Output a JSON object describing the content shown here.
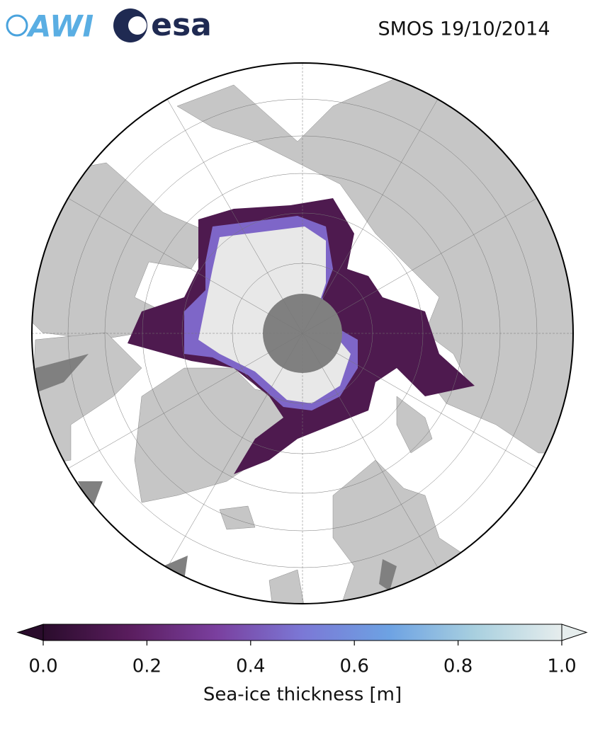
{
  "header": {
    "logos": [
      "AWI",
      "esa"
    ],
    "title": "SMOS 19/10/2014"
  },
  "colorbar": {
    "label": "Sea-ice thickness [m]",
    "lim": [
      0,
      1
    ],
    "ticks": [
      {
        "value": 0,
        "label": "0.0"
      },
      {
        "value": 0.2,
        "label": "0.2"
      },
      {
        "value": 0.4,
        "label": "0.4"
      },
      {
        "value": 0.6,
        "label": "0.6"
      },
      {
        "value": 0.8,
        "label": "0.8"
      },
      {
        "value": 1,
        "label": "1.0"
      }
    ],
    "colormap": [
      "#2a0c2c",
      "#5a1d5e",
      "#7a3f9e",
      "#7b78d6",
      "#6da2e3",
      "#a9d0df",
      "#e6eded"
    ]
  }
}
